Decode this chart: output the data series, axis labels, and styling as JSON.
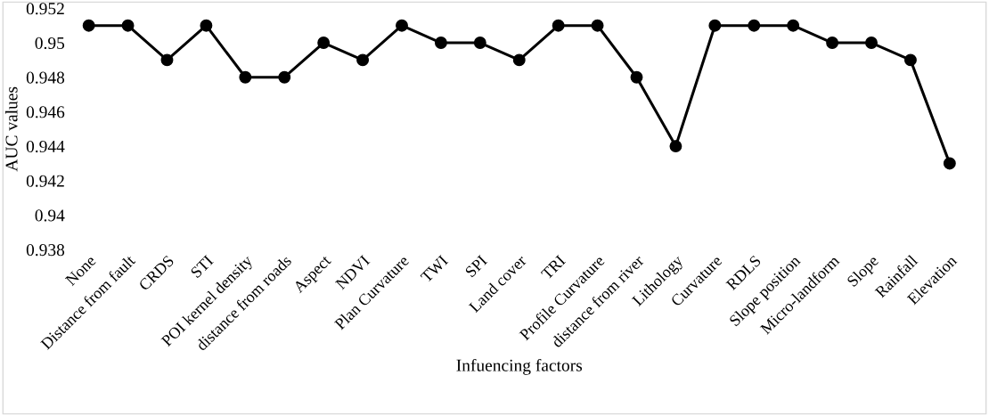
{
  "chart_data": {
    "type": "line",
    "xlabel": "Infuencing factors",
    "ylabel": "AUC values",
    "categories": [
      "None",
      "Distance from fault",
      "CRDS",
      "STI",
      "POI kernel density",
      "distance from roads",
      "Aspect",
      "NDVI",
      "Plan Curvature",
      "TWI",
      "SPI",
      "Land cover",
      "TRI",
      "Profile Curvature",
      "distance from river",
      "Lithology",
      "Curvature",
      "RDLS",
      "Slope position",
      "Micro-landform",
      "Slope",
      "Rainfall",
      "Elevation"
    ],
    "series": [
      {
        "color": "#000000",
        "values": [
          0.951,
          0.951,
          0.949,
          0.951,
          0.948,
          0.948,
          0.95,
          0.949,
          0.951,
          0.95,
          0.95,
          0.949,
          0.951,
          0.951,
          0.948,
          0.944,
          0.951,
          0.951,
          0.951,
          0.95,
          0.95,
          0.949,
          0.943
        ]
      }
    ],
    "ylim": [
      0.938,
      0.952
    ],
    "yticks": [
      0.938,
      {
        "value": 0.94,
        "label": "0.94"
      },
      0.942,
      0.944,
      0.946,
      0.948,
      {
        "value": 0.95,
        "label": "0.95"
      },
      0.952
    ],
    "marker": "circle",
    "line_style": "solid",
    "grid": false,
    "legend": false
  }
}
